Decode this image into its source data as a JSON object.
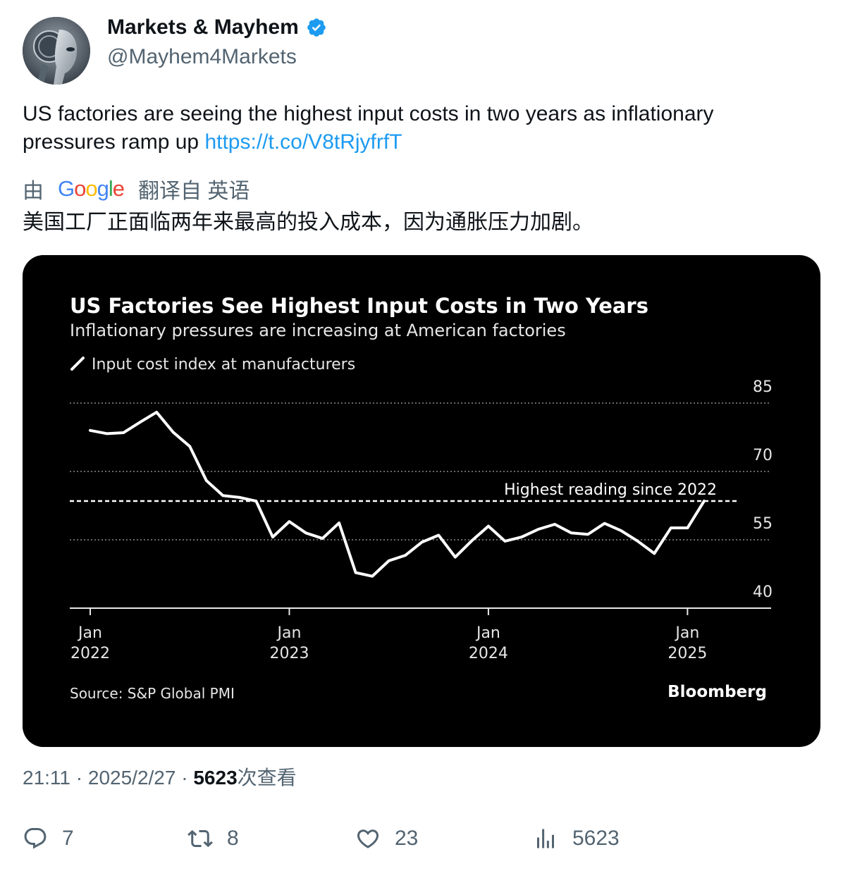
{
  "author": {
    "name": "Markets & Mayhem",
    "handle": "@Mayhem4Markets",
    "verified_color": "#1d9bf0"
  },
  "tweet": {
    "text": "US factories are seeing the highest input costs in two years as inflationary pressures ramp up ",
    "link": "https://t.co/V8tRjyfrfT"
  },
  "translation": {
    "prefix": "由",
    "brand": "Google",
    "suffix": "翻译自 英语",
    "text": "美国工厂正面临两年来最高的投入成本，因为通胀压力加剧。"
  },
  "chart_data": {
    "type": "line",
    "title": "US Factories See Highest Input Costs in Two Years",
    "subtitle": "Inflationary pressures are increasing at American factories",
    "legend": "Input cost index at manufacturers",
    "source": "Source: S&P Global PMI",
    "brand": "Bloomberg",
    "ylim": [
      40,
      85
    ],
    "yticks": [
      85,
      70,
      55,
      40
    ],
    "xlim": [
      "2022-01",
      "2025-04"
    ],
    "xticks": [
      {
        "date": "2022-01",
        "line1": "Jan",
        "line2": "2022"
      },
      {
        "date": "2023-01",
        "line1": "Jan",
        "line2": "2023"
      },
      {
        "date": "2024-01",
        "line1": "Jan",
        "line2": "2024"
      },
      {
        "date": "2025-01",
        "line1": "Jan",
        "line2": "2025"
      }
    ],
    "reference_line": {
      "value": 63.5,
      "label": "Highest reading since 2022"
    },
    "grid": true,
    "series": [
      {
        "color": "#ffffff",
        "x": [
          "2022-01",
          "2022-02",
          "2022-03",
          "2022-04",
          "2022-05",
          "2022-06",
          "2022-07",
          "2022-08",
          "2022-09",
          "2022-10",
          "2022-11",
          "2022-12",
          "2023-01",
          "2023-02",
          "2023-03",
          "2023-04",
          "2023-05",
          "2023-06",
          "2023-07",
          "2023-08",
          "2023-09",
          "2023-10",
          "2023-11",
          "2023-12",
          "2024-01",
          "2024-02",
          "2024-03",
          "2024-04",
          "2024-05",
          "2024-06",
          "2024-07",
          "2024-08",
          "2024-09",
          "2024-10",
          "2024-11",
          "2024-12",
          "2025-01",
          "2025-02"
        ],
        "values": [
          79,
          78.3,
          78.5,
          80.8,
          83.0,
          78.6,
          75.5,
          68.0,
          64.7,
          64.3,
          63.5,
          55.6,
          59.0,
          56.5,
          55.3,
          58.7,
          47.8,
          47.0,
          50.4,
          51.6,
          54.5,
          56.0,
          51.2,
          54.8,
          58.0,
          54.7,
          55.6,
          57.3,
          58.4,
          56.5,
          56.2,
          58.6,
          57.0,
          54.7,
          52.0,
          57.6,
          57.6,
          63.5
        ]
      }
    ]
  },
  "meta": {
    "time": "21:11",
    "sep1": " · ",
    "date": "2025/2/27",
    "sep2": " · ",
    "views_count": "5623",
    "views_label": "次查看"
  },
  "actions": {
    "replies": "7",
    "retweets": "8",
    "likes": "23",
    "views": "5623"
  }
}
